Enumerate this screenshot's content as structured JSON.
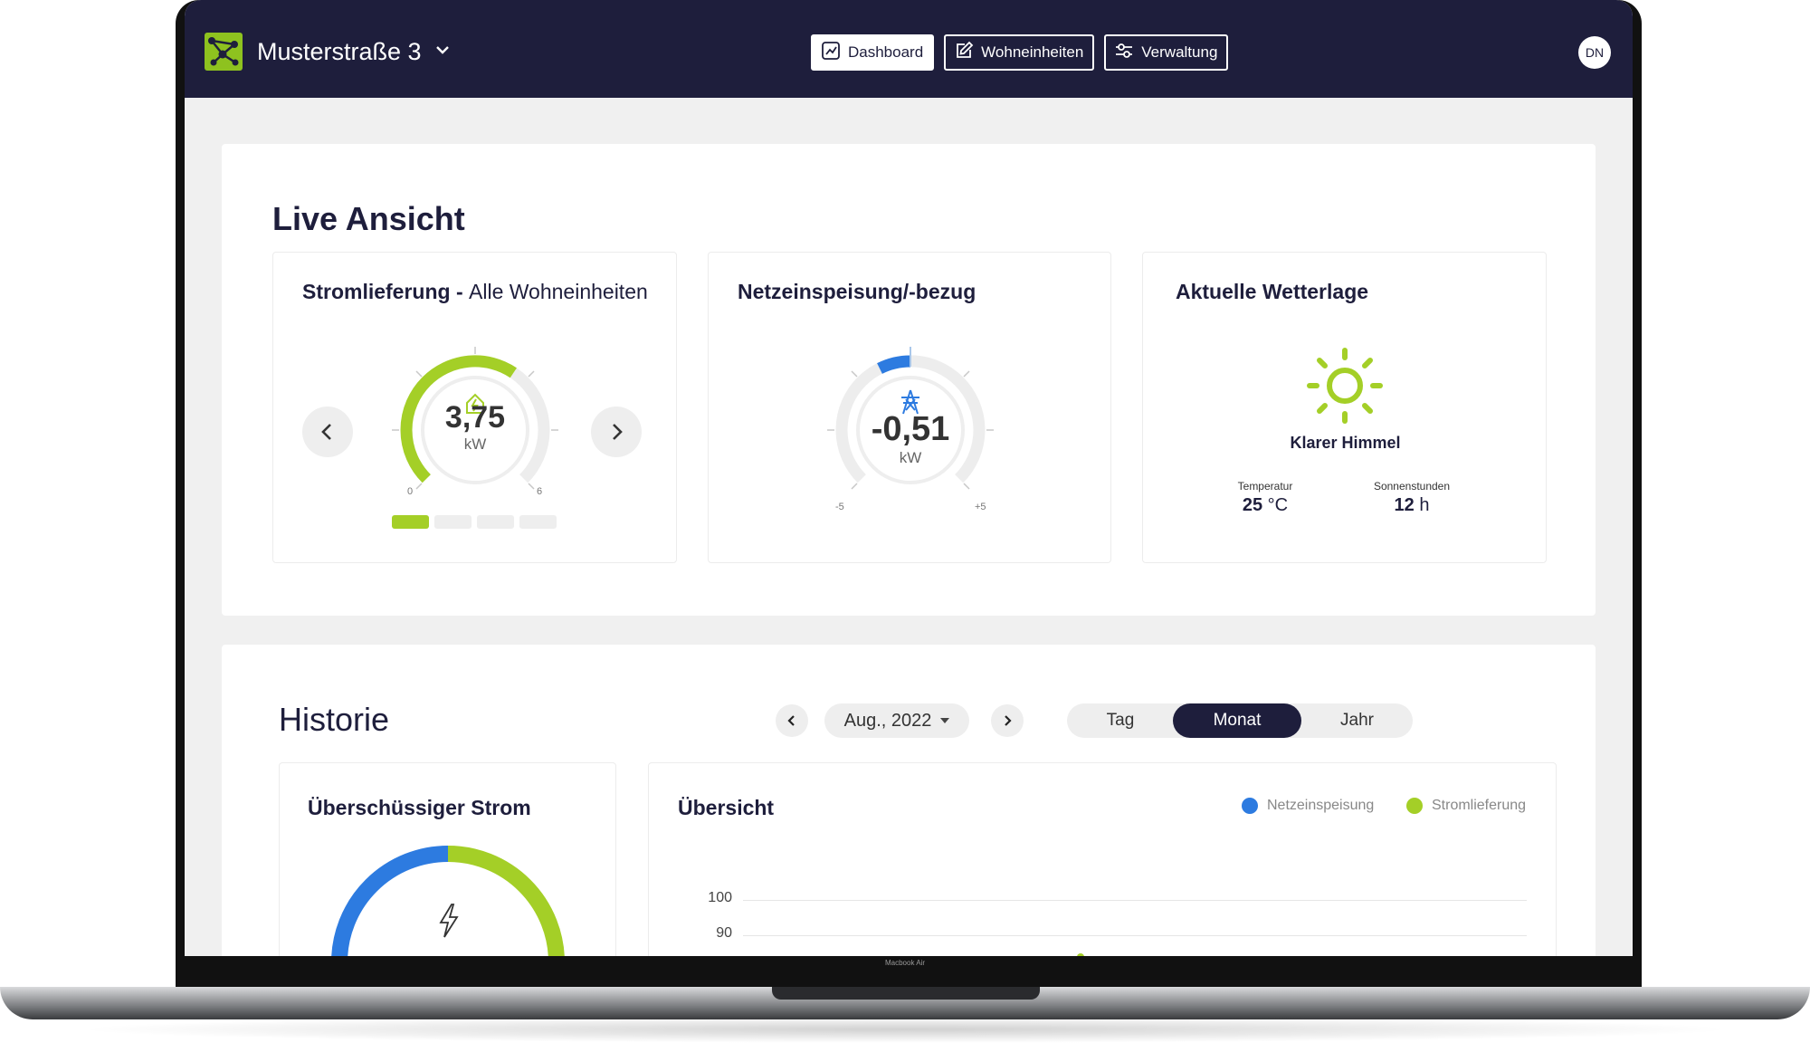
{
  "app": {
    "site_name": "Musterstraße 3",
    "user_initials": "DN"
  },
  "device": {
    "label": "Macbook Air"
  },
  "nav": [
    {
      "label": "Dashboard",
      "icon": "chart-icon",
      "active": true
    },
    {
      "label": "Wohneinheiten",
      "icon": "edit-icon",
      "active": false
    },
    {
      "label": "Verwaltung",
      "icon": "sliders-icon",
      "active": false
    }
  ],
  "live": {
    "title": "Live Ansicht",
    "power_supply": {
      "title": "Stromlieferung - ",
      "subtitle": "Alle Wohneinheiten",
      "value": "3,75",
      "unit": "kW",
      "min": "0",
      "max": "6",
      "page_index": 0,
      "page_count": 4,
      "fraction": 0.625
    },
    "grid": {
      "title": "Netzeinspeisung/-bezug",
      "value": "-0,51",
      "unit": "kW",
      "min": "-5",
      "max": "+5"
    },
    "weather": {
      "title": "Aktuelle Wetterlage",
      "condition": "Klarer Himmel",
      "temperature_label": "Temperatur",
      "temperature_value": "25",
      "temperature_unit": "°C",
      "sun_hours_label": "Sonnenstunden",
      "sun_hours_value": "12",
      "sun_hours_unit": "h"
    }
  },
  "history": {
    "title": "Historie",
    "date": "Aug., 2022",
    "periods": [
      {
        "label": "Tag",
        "active": false
      },
      {
        "label": "Monat",
        "active": true
      },
      {
        "label": "Jahr",
        "active": false
      }
    ],
    "surplus": {
      "title": "Überschüssiger Strom"
    },
    "overview": {
      "title": "Übersicht",
      "legend": [
        {
          "label": "Netzeinspeisung",
          "color": "#2d7be0"
        },
        {
          "label": "Stromlieferung",
          "color": "#a4cf27"
        }
      ],
      "y_ticks": [
        "100",
        "90"
      ]
    }
  },
  "colors": {
    "navy": "#1e1e3c",
    "green": "#a4cf27",
    "blue": "#2d7be0"
  }
}
